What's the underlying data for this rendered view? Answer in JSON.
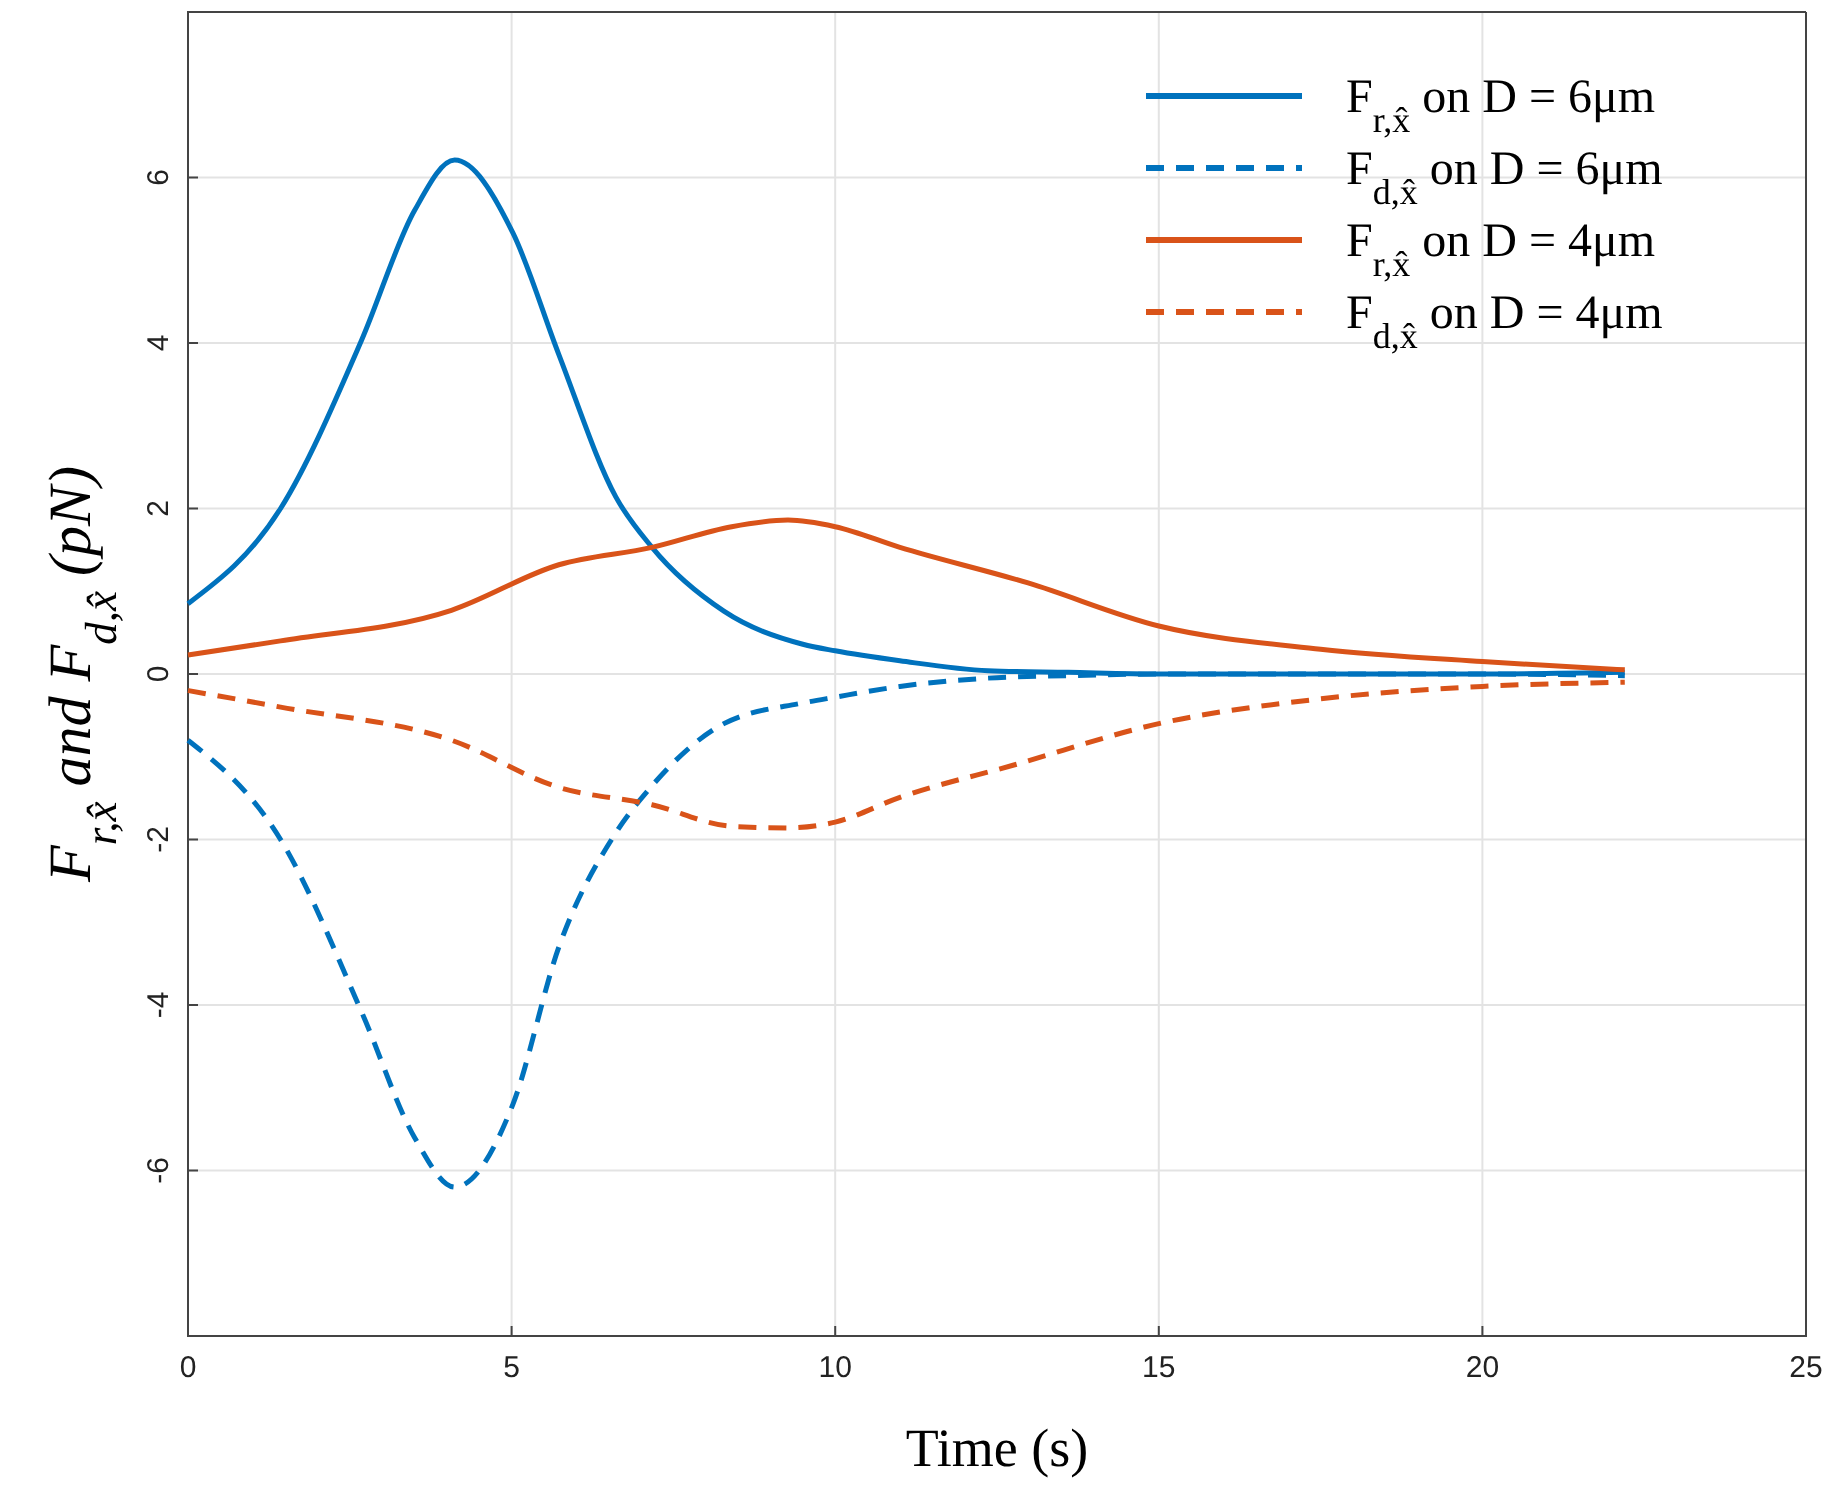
{
  "chart_data": {
    "type": "line",
    "xlabel": "Time (s)",
    "ylabel": "F$_{r,x̂}$ and F$_{d,x̂}$ (pN)",
    "xlim": [
      0,
      25
    ],
    "ylim": [
      -8,
      8
    ],
    "xticks": [
      0,
      5,
      10,
      15,
      20,
      25
    ],
    "yticks": [
      -6,
      -4,
      -2,
      0,
      2,
      4,
      6
    ],
    "grid": true,
    "legend": "top right",
    "x": [
      0,
      1.43,
      2.68,
      3.5,
      4.12,
      5.02,
      5.73,
      6.61,
      7.17,
      8.28,
      9.5,
      10,
      11,
      12.36,
      13.6,
      15,
      17.5,
      20,
      22.2
    ],
    "series": [
      {
        "name": "F$_{r,x̂}$ on D = 6μm",
        "color": "#0072bd",
        "line_style": "solid",
        "values": [
          0.85,
          2.0,
          4.03,
          5.6,
          6.21,
          5.33,
          3.86,
          2.14,
          1.53,
          0.76,
          0.36,
          0.28,
          0.16,
          0.04,
          0.02,
          0,
          0,
          0,
          0.02
        ]
      },
      {
        "name": "F$_{d,x̂}$ on D = 6μm",
        "color": "#0072bd",
        "line_style": "dashed",
        "values": [
          -0.8,
          -2.0,
          -4.08,
          -5.6,
          -6.2,
          -5.2,
          -3.3,
          -1.92,
          -1.35,
          -0.6,
          -0.35,
          -0.28,
          -0.15,
          -0.05,
          -0.02,
          0,
          0,
          0,
          -0.02
        ]
      },
      {
        "name": "F$_{r,x̂}$ on D = 4μm",
        "color": "#d95319",
        "line_style": "solid",
        "x": [
          0,
          1.43,
          4.07,
          5.73,
          7.17,
          8.4,
          9.27,
          10,
          11,
          12.98,
          15,
          17.5,
          20,
          22.2
        ],
        "values": [
          0.23,
          0.4,
          0.77,
          1.32,
          1.53,
          1.78,
          1.86,
          1.78,
          1.53,
          1.1,
          0.58,
          0.3,
          0.15,
          0.05
        ]
      },
      {
        "name": "F$_{d,x̂}$ on D = 4μm",
        "color": "#d95319",
        "line_style": "dashed",
        "x": [
          0,
          1.43,
          4.07,
          5.73,
          7.17,
          8.4,
          9.27,
          10,
          11,
          12.76,
          15,
          17.5,
          20,
          22.2
        ],
        "values": [
          -0.2,
          -0.4,
          -0.8,
          -1.37,
          -1.58,
          -1.84,
          -1.86,
          -1.79,
          -1.49,
          -1.1,
          -0.6,
          -0.3,
          -0.15,
          -0.1
        ]
      }
    ]
  }
}
